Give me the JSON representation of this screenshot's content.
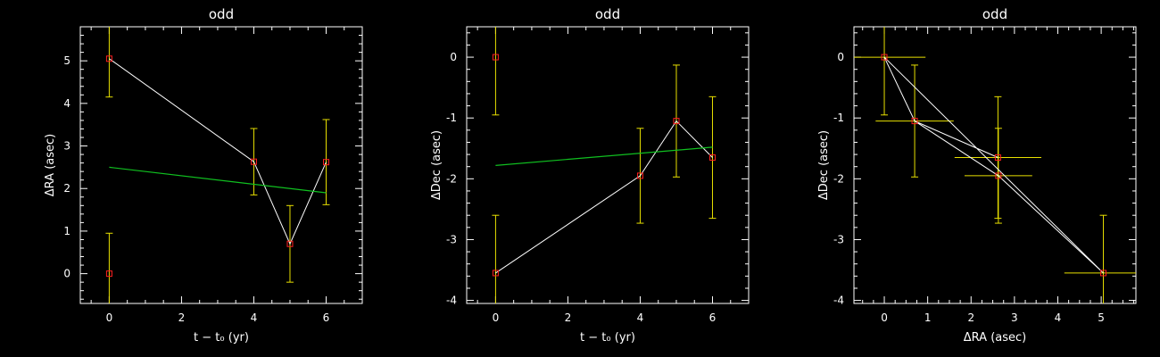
{
  "colors": {
    "background": "#000000",
    "axes": "#ffffff",
    "data_line": "#ffffff",
    "marker": "#ff2020",
    "error_bar": "#e8e000",
    "fit_line": "#10c020"
  },
  "chart_data": [
    {
      "type": "scatter",
      "title": "odd",
      "xlabel": "t − t₀ (yr)",
      "ylabel": "ΔRA (asec)",
      "xlim": [
        -0.8,
        7.0
      ],
      "ylim": [
        -0.7,
        5.8
      ],
      "xticks": [
        0,
        2,
        4,
        6
      ],
      "yticks": [
        0,
        1,
        2,
        3,
        4,
        5
      ],
      "grid": false,
      "points": [
        {
          "x": 0,
          "y": 5.05,
          "yerr": 0.9
        },
        {
          "x": 0,
          "y": 0.0,
          "yerr": 0.95
        },
        {
          "x": 4,
          "y": 2.63,
          "yerr": 0.78
        },
        {
          "x": 5,
          "y": 0.7,
          "yerr": 0.9
        },
        {
          "x": 6,
          "y": 2.62,
          "yerr": 1.0
        }
      ],
      "connect_order": [
        0,
        2,
        3,
        4
      ],
      "fit": {
        "x": [
          0,
          6
        ],
        "y": [
          2.5,
          1.9
        ]
      }
    },
    {
      "type": "scatter",
      "title": "odd",
      "xlabel": "t − t₀ (yr)",
      "ylabel": "ΔDec (asec)",
      "xlim": [
        -0.8,
        7.0
      ],
      "ylim": [
        -4.05,
        0.5
      ],
      "xticks": [
        0,
        2,
        4,
        6
      ],
      "yticks": [
        0,
        -1,
        -2,
        -3,
        -4
      ],
      "grid": false,
      "points": [
        {
          "x": 0,
          "y": 0.0,
          "yerr": 0.95
        },
        {
          "x": 0,
          "y": -3.55,
          "yerr": 0.95
        },
        {
          "x": 4,
          "y": -1.95,
          "yerr": 0.78
        },
        {
          "x": 5,
          "y": -1.05,
          "yerr": 0.92
        },
        {
          "x": 6,
          "y": -1.65,
          "yerr": 1.0
        }
      ],
      "connect_order": [
        1,
        2,
        3,
        4
      ],
      "fit": {
        "x": [
          0,
          6
        ],
        "y": [
          -1.78,
          -1.48
        ]
      }
    },
    {
      "type": "scatter",
      "title": "odd",
      "xlabel": "ΔRA (asec)",
      "ylabel": "ΔDec (asec)",
      "xlim": [
        -0.7,
        5.8
      ],
      "ylim": [
        -4.05,
        0.5
      ],
      "xticks": [
        0,
        1,
        2,
        3,
        4,
        5
      ],
      "yticks": [
        0,
        -1,
        -2,
        -3,
        -4
      ],
      "grid": false,
      "points": [
        {
          "x": 0.0,
          "y": 0.0,
          "xerr": 0.95,
          "yerr": 0.95
        },
        {
          "x": 0.7,
          "y": -1.05,
          "xerr": 0.9,
          "yerr": 0.92
        },
        {
          "x": 2.62,
          "y": -1.65,
          "xerr": 1.0,
          "yerr": 1.0
        },
        {
          "x": 2.63,
          "y": -1.95,
          "xerr": 0.78,
          "yerr": 0.78
        },
        {
          "x": 5.05,
          "y": -3.55,
          "xerr": 0.9,
          "yerr": 0.95
        }
      ],
      "connect_order": [
        0,
        1,
        2,
        1,
        3,
        4,
        0
      ]
    }
  ]
}
